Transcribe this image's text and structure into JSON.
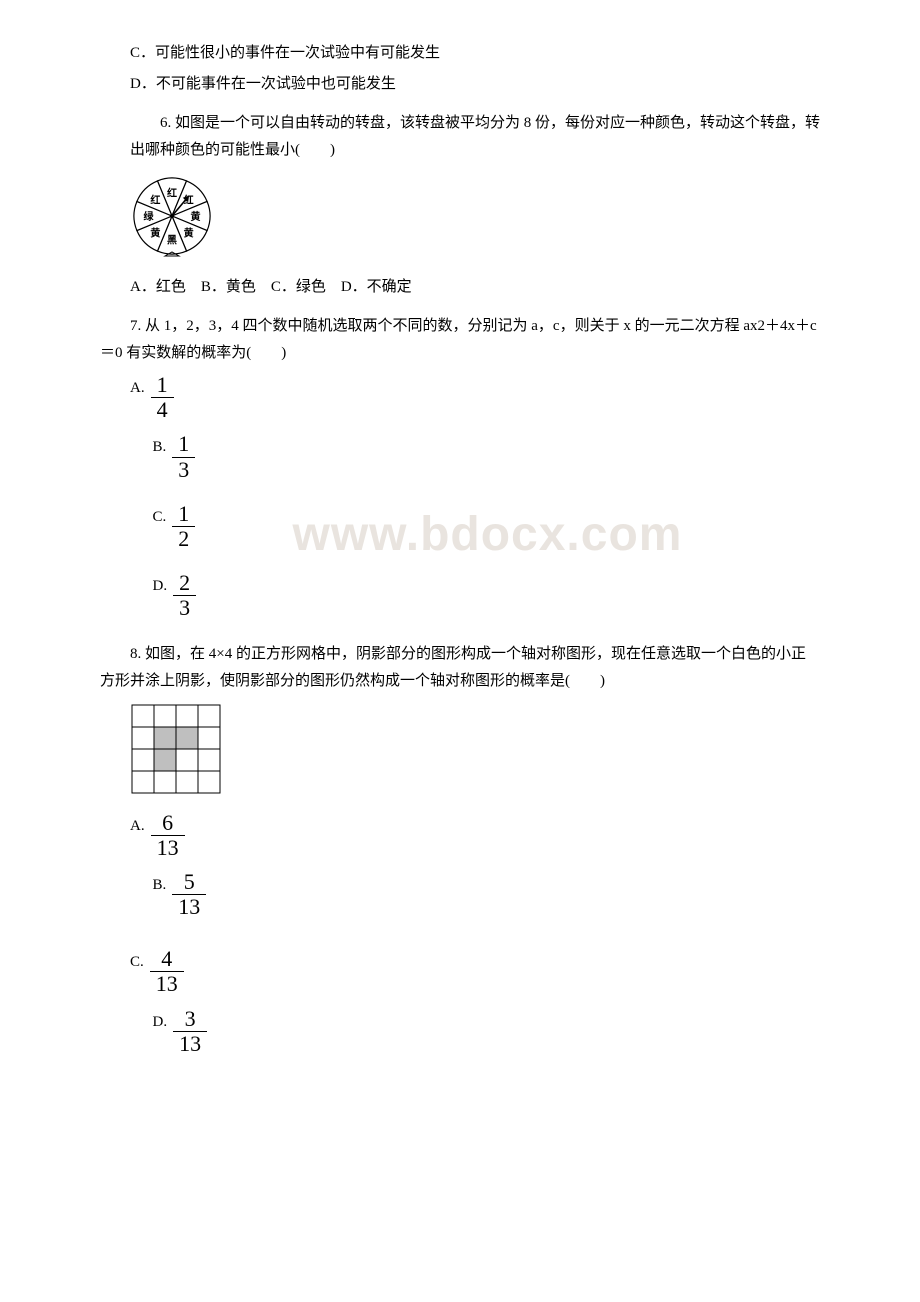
{
  "lines": {
    "c5": "C．可能性很小的事件在一次试验中有可能发生",
    "d5": "D．不可能事件在一次试验中也可能发生"
  },
  "q6": {
    "text": "6. 如图是一个可以自由转动的转盘，该转盘被平均分为 8 份，每份对应一种颜色，转动这个转盘，转出哪种颜色的可能性最小(　　)",
    "options": "A．红色　B．黄色　C．绿色　D．不确定",
    "spinner": {
      "slices": [
        {
          "label": "红",
          "color": "#ffffff"
        },
        {
          "label": "红",
          "color": "#ffffff"
        },
        {
          "label": "黄",
          "color": "#ffffff"
        },
        {
          "label": "黄",
          "color": "#ffffff"
        },
        {
          "label": "黑",
          "color": "#ffffff"
        },
        {
          "label": "黄",
          "color": "#ffffff"
        },
        {
          "label": "绿",
          "color": "#ffffff"
        },
        {
          "label": "红",
          "color": "#ffffff"
        }
      ],
      "stroke": "#000000",
      "label_fontsize": 10,
      "pointer_color": "#000000",
      "size": 84
    }
  },
  "q7": {
    "text": "7. 从 1，2，3，4 四个数中随机选取两个不同的数，分别记为 a，c，则关于 x 的一元二次方程 ax2＋4x＋c＝0 有实数解的概率为(　　)",
    "options": [
      {
        "label": "A.",
        "num": "1",
        "den": "4"
      },
      {
        "label": "B.",
        "num": "1",
        "den": "3"
      },
      {
        "label": "C.",
        "num": "1",
        "den": "2"
      },
      {
        "label": "D.",
        "num": "2",
        "den": "3"
      }
    ]
  },
  "q8": {
    "text": "8. 如图，在 4×4 的正方形网格中，阴影部分的图形构成一个轴对称图形，现在任意选取一个白色的小正方形并涂上阴影，使阴影部分的图形仍然构成一个轴对称图形的概率是(　　)",
    "options": [
      {
        "label": "A.",
        "num": "6",
        "den": "13"
      },
      {
        "label": "B.",
        "num": "5",
        "den": "13"
      },
      {
        "label": "C.",
        "num": "4",
        "den": "13"
      },
      {
        "label": "D.",
        "num": "3",
        "den": "13"
      }
    ],
    "grid": {
      "size": 4,
      "cell": 22,
      "stroke": "#000000",
      "fill_shaded": "#bfbfbf",
      "fill_blank": "#ffffff",
      "shaded_cells": [
        [
          1,
          1
        ],
        [
          1,
          2
        ],
        [
          2,
          1
        ]
      ]
    }
  },
  "watermark": "www.bdocx.com"
}
